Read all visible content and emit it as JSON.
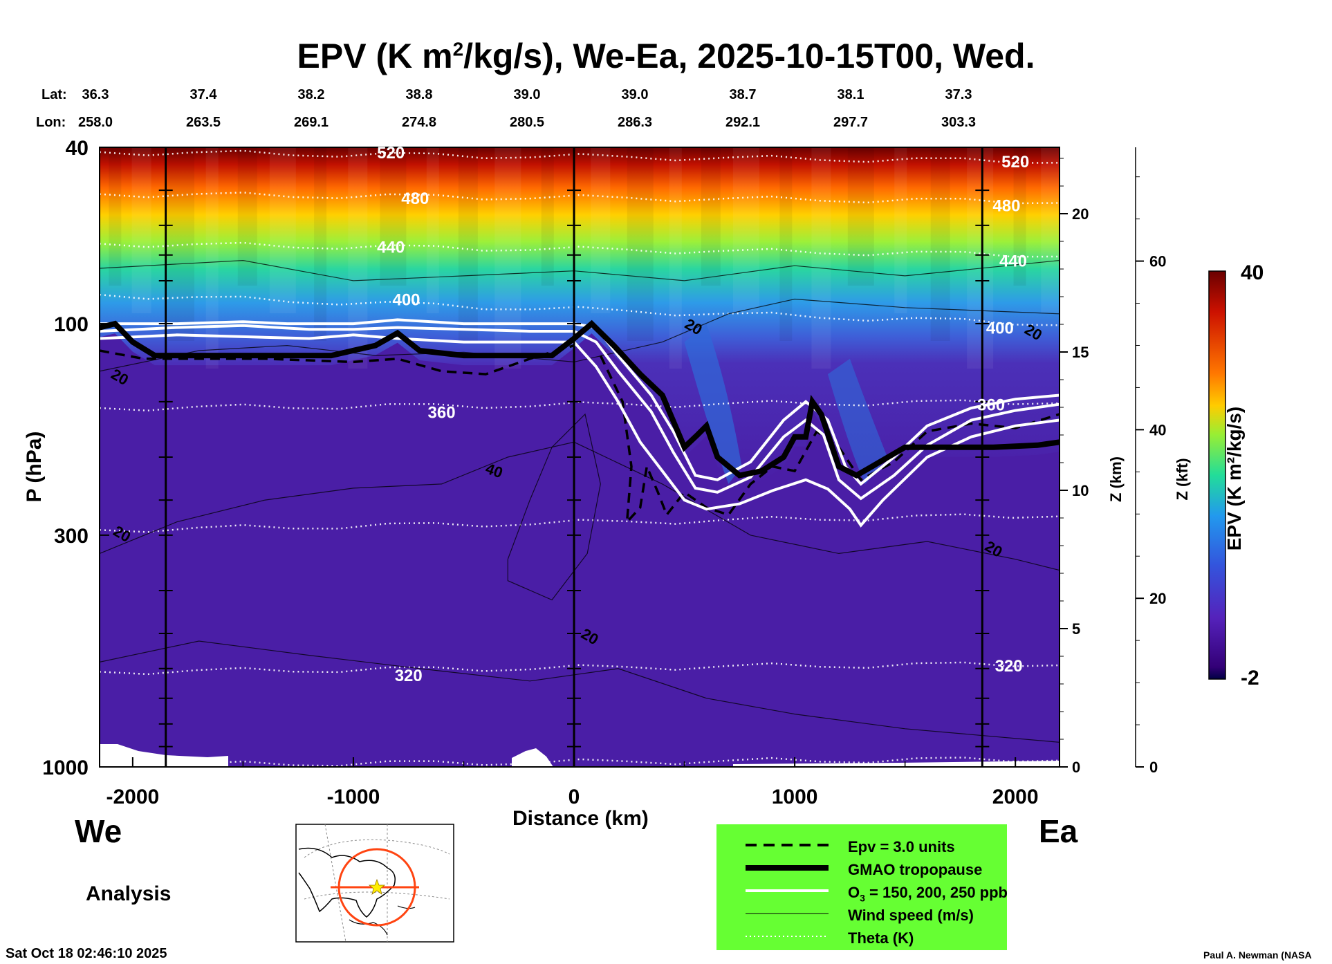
{
  "chart_data": {
    "type": "heatmap",
    "title_main": "EPV (K m",
    "title_sup": "2",
    "title_rest": "/kg/s), We-Ea, 2025-10-15T00, Wed.",
    "lat_label": "Lat:",
    "lon_label": "Lon:",
    "lat_values": [
      "36.3",
      "37.4",
      "38.2",
      "38.8",
      "39.0",
      "39.0",
      "38.7",
      "38.1",
      "37.3"
    ],
    "lon_values": [
      "258.0",
      "263.5",
      "269.1",
      "274.8",
      "280.5",
      "286.3",
      "292.1",
      "297.7",
      "303.3"
    ],
    "xlabel": "Distance (km)",
    "ylabel": "P (hPa)",
    "xlim": [
      -2150,
      2200
    ],
    "x_ticks": [
      -2000,
      -1000,
      0,
      1000,
      2000
    ],
    "x_tick_labels": [
      "-2000",
      "-1000",
      "0",
      "1000",
      "2000"
    ],
    "p_ticks": [
      40,
      100,
      300,
      1000
    ],
    "p_tick_labels": [
      "40",
      "100",
      "300",
      "1000"
    ],
    "z_km_label": "Z (km)",
    "z_km_ticks": [
      0,
      5,
      10,
      15,
      20
    ],
    "z_km_tick_labels": [
      "0",
      "5",
      "10",
      "15",
      "20"
    ],
    "z_kft_label": "Z (kft)",
    "z_kft_ticks": [
      0,
      20,
      40,
      60
    ],
    "z_kft_tick_labels": [
      "0",
      "20",
      "40",
      "60"
    ],
    "colorbar": {
      "label": "EPV (K m²/kg/s)",
      "min": -2,
      "max": 40,
      "min_label": "-2",
      "max_label": "40"
    },
    "theta_labels": [
      {
        "text": "520",
        "x": -830,
        "p": 41
      },
      {
        "text": "480",
        "x": -720,
        "p": 52
      },
      {
        "text": "440",
        "x": -830,
        "p": 67
      },
      {
        "text": "400",
        "x": -760,
        "p": 88
      },
      {
        "text": "360",
        "x": -600,
        "p": 158
      },
      {
        "text": "320",
        "x": -750,
        "p": 620
      },
      {
        "text": "520",
        "x": 2000,
        "p": 43
      },
      {
        "text": "480",
        "x": 1960,
        "p": 54
      },
      {
        "text": "440",
        "x": 1990,
        "p": 72
      },
      {
        "text": "400",
        "x": 1930,
        "p": 102
      },
      {
        "text": "360",
        "x": 1890,
        "p": 152
      },
      {
        "text": "320",
        "x": 1970,
        "p": 590
      }
    ],
    "wind_labels": [
      {
        "text": "20",
        "x": -2070,
        "p": 135,
        "rot": -60
      },
      {
        "text": "20",
        "x": 530,
        "p": 104,
        "rot": -60
      },
      {
        "text": "20",
        "x": 2070,
        "p": 107,
        "rot": -60
      },
      {
        "text": "40",
        "x": -370,
        "p": 220,
        "rot": -70
      },
      {
        "text": "20",
        "x": -2060,
        "p": 305,
        "rot": -60
      },
      {
        "text": "20",
        "x": 60,
        "p": 520,
        "rot": -60
      },
      {
        "text": "20",
        "x": 1890,
        "p": 330,
        "rot": -60
      }
    ],
    "tropopause": [
      [
        -2150,
        102
      ],
      [
        -2080,
        100
      ],
      [
        -2000,
        110
      ],
      [
        -1900,
        118
      ],
      [
        -1700,
        118
      ],
      [
        -1400,
        118
      ],
      [
        -1100,
        118
      ],
      [
        -900,
        112
      ],
      [
        -800,
        105
      ],
      [
        -700,
        115
      ],
      [
        -500,
        118
      ],
      [
        -300,
        118
      ],
      [
        -100,
        118
      ],
      [
        0,
        108
      ],
      [
        80,
        100
      ],
      [
        180,
        112
      ],
      [
        300,
        130
      ],
      [
        400,
        145
      ],
      [
        500,
        190
      ],
      [
        560,
        178
      ],
      [
        600,
        170
      ],
      [
        650,
        200
      ],
      [
        750,
        220
      ],
      [
        850,
        215
      ],
      [
        950,
        200
      ],
      [
        1000,
        180
      ],
      [
        1050,
        180
      ],
      [
        1080,
        150
      ],
      [
        1120,
        160
      ],
      [
        1200,
        210
      ],
      [
        1280,
        220
      ],
      [
        1350,
        210
      ],
      [
        1500,
        190
      ],
      [
        1700,
        190
      ],
      [
        1900,
        190
      ],
      [
        2100,
        188
      ],
      [
        2200,
        185
      ]
    ],
    "ozone": [
      [
        [
          -2150,
          100
        ],
        [
          -1800,
          100
        ],
        [
          -1500,
          99
        ],
        [
          -1300,
          100
        ],
        [
          -1000,
          100
        ],
        [
          -800,
          98
        ],
        [
          -500,
          100
        ],
        [
          -200,
          100
        ],
        [
          0,
          100
        ],
        [
          100,
          102
        ],
        [
          200,
          118
        ],
        [
          350,
          145
        ],
        [
          450,
          175
        ],
        [
          550,
          220
        ],
        [
          650,
          225
        ],
        [
          800,
          205
        ],
        [
          950,
          165
        ],
        [
          1050,
          150
        ],
        [
          1150,
          165
        ],
        [
          1230,
          210
        ],
        [
          1300,
          230
        ],
        [
          1450,
          200
        ],
        [
          1600,
          170
        ],
        [
          1800,
          155
        ],
        [
          2000,
          148
        ],
        [
          2200,
          145
        ]
      ],
      [
        [
          -2150,
          104
        ],
        [
          -1800,
          102
        ],
        [
          -1500,
          101
        ],
        [
          -1200,
          103
        ],
        [
          -1000,
          103
        ],
        [
          -800,
          102
        ],
        [
          -500,
          103
        ],
        [
          -200,
          104
        ],
        [
          0,
          104
        ],
        [
          100,
          110
        ],
        [
          200,
          128
        ],
        [
          350,
          158
        ],
        [
          450,
          195
        ],
        [
          550,
          235
        ],
        [
          650,
          240
        ],
        [
          800,
          222
        ],
        [
          950,
          180
        ],
        [
          1050,
          165
        ],
        [
          1130,
          178
        ],
        [
          1200,
          225
        ],
        [
          1300,
          248
        ],
        [
          1450,
          220
        ],
        [
          1600,
          188
        ],
        [
          1800,
          165
        ],
        [
          2000,
          157
        ],
        [
          2200,
          152
        ]
      ],
      [
        [
          -2150,
          108
        ],
        [
          -1800,
          106
        ],
        [
          -1500,
          107
        ],
        [
          -1200,
          108
        ],
        [
          -1000,
          106
        ],
        [
          -800,
          108
        ],
        [
          -500,
          110
        ],
        [
          -200,
          110
        ],
        [
          0,
          110
        ],
        [
          100,
          125
        ],
        [
          200,
          150
        ],
        [
          300,
          185
        ],
        [
          400,
          215
        ],
        [
          500,
          250
        ],
        [
          600,
          262
        ],
        [
          750,
          255
        ],
        [
          900,
          238
        ],
        [
          1050,
          225
        ],
        [
          1150,
          236
        ],
        [
          1250,
          262
        ],
        [
          1300,
          285
        ],
        [
          1400,
          250
        ],
        [
          1600,
          200
        ],
        [
          1800,
          180
        ],
        [
          2000,
          170
        ],
        [
          2200,
          165
        ]
      ]
    ],
    "epv3": [
      [
        [
          -2150,
          115
        ],
        [
          -1950,
          120
        ],
        [
          -1700,
          120
        ],
        [
          -1400,
          120
        ],
        [
          -1000,
          122
        ],
        [
          -800,
          120
        ],
        [
          -600,
          128
        ],
        [
          -400,
          130
        ],
        [
          -200,
          120
        ],
        [
          0,
          112
        ]
      ],
      [
        [
          120,
          118
        ],
        [
          220,
          150
        ],
        [
          260,
          210
        ],
        [
          240,
          280
        ],
        [
          300,
          260
        ],
        [
          330,
          210
        ],
        [
          380,
          240
        ],
        [
          420,
          270
        ],
        [
          500,
          240
        ],
        [
          600,
          260
        ],
        [
          700,
          270
        ],
        [
          800,
          230
        ],
        [
          900,
          210
        ],
        [
          1000,
          215
        ],
        [
          1100,
          175
        ],
        [
          1200,
          190
        ],
        [
          1300,
          225
        ],
        [
          1450,
          205
        ],
        [
          1600,
          175
        ],
        [
          1800,
          168
        ],
        [
          2000,
          172
        ],
        [
          2200,
          160
        ]
      ]
    ]
  },
  "legend": {
    "items": [
      {
        "label": "Epv = 3.0 units",
        "style": "dashed"
      },
      {
        "label": "GMAO tropopause",
        "style": "thick"
      },
      {
        "label": "O",
        "sub": "3",
        "rest": " = 150, 200, 250 ppb",
        "style": "white"
      },
      {
        "label": "Wind speed (m/s)",
        "style": "thin"
      },
      {
        "label": "Theta (K)",
        "style": "dotted"
      }
    ]
  },
  "labels": {
    "left_dir": "We",
    "right_dir": "Ea",
    "analysis": "Analysis",
    "timestamp": "Sat Oct 18 02:46:10 2025",
    "credit": "Paul A. Newman (NASA"
  },
  "colors": {
    "legend_bg": "#66ff33",
    "background_epv": "#4b1ea8",
    "ozone_line": "#ffffff",
    "tropopause_line": "#000000",
    "map_circle": "#ff4411",
    "map_star": "#ffee00"
  }
}
